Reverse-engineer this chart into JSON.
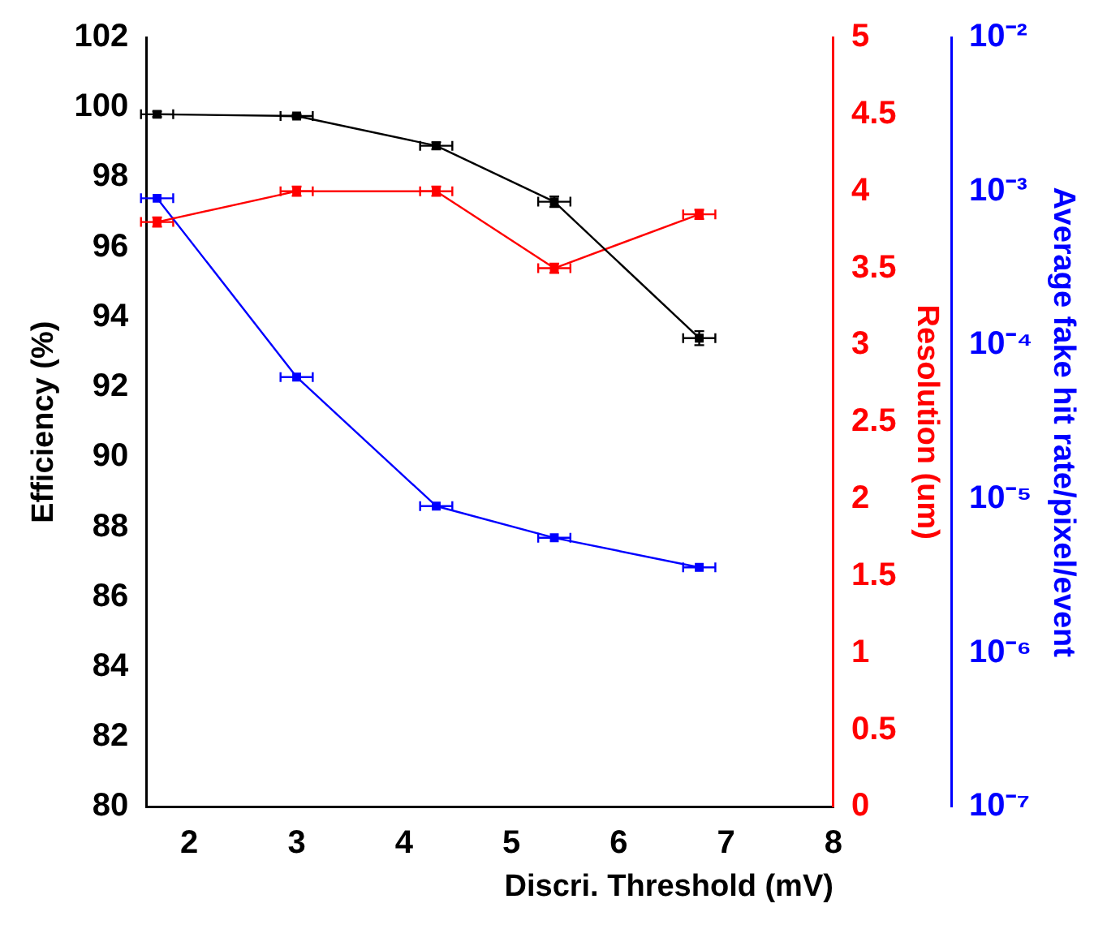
{
  "chart_data": {
    "type": "line",
    "xlabel": "Discri. Threshold (mV)",
    "ylabel": "Efficiency (%)",
    "y2label": "Resolution (um)",
    "y3label": "Average fake hit rate/pixel/event",
    "x": [
      1.7,
      3.0,
      4.3,
      5.4,
      6.75
    ],
    "series": [
      {
        "color": "#000000",
        "values": [
          99.8,
          99.75,
          98.9,
          97.3,
          93.4
        ],
        "errors": [
          0.08,
          0.05,
          0.1,
          0.15,
          0.2
        ],
        "xerrors": [
          0.15,
          0.15,
          0.15,
          0.15,
          0.15
        ]
      },
      {
        "color": "#ff0000",
        "values": [
          3.8,
          4.0,
          4.0,
          3.5,
          3.85
        ],
        "errors": [
          0.03,
          0.03,
          0.03,
          0.03,
          0.03
        ],
        "xerrors": [
          0.15,
          0.15,
          0.15,
          0.15,
          0.15
        ],
        "axis": "y2"
      },
      {
        "color": "#0000ff",
        "values": [
          0.0009,
          6.2e-05,
          9e-06,
          5.6e-06,
          3.6e-06
        ],
        "xerrors": [
          0.15,
          0.15,
          0.15,
          0.15,
          0.15
        ],
        "axis": "y3"
      }
    ],
    "xlim": [
      1.6,
      8
    ],
    "xticks": [
      2,
      3,
      4,
      5,
      6,
      7,
      8
    ],
    "ylim": [
      80,
      102
    ],
    "yticks": [
      80,
      82,
      84,
      86,
      88,
      90,
      92,
      94,
      96,
      98,
      100,
      102
    ],
    "y2lim": [
      0,
      5
    ],
    "y2ticks": [
      0,
      0.5,
      1,
      1.5,
      2,
      2.5,
      3,
      3.5,
      4,
      4.5,
      5
    ],
    "y3lim": [
      1e-07,
      0.01
    ],
    "y3ticks": [
      {
        "value": 1e-07,
        "label": "10⁻⁷"
      },
      {
        "value": 1e-06,
        "label": "10⁻⁶"
      },
      {
        "value": 1e-05,
        "label": "10⁻⁵"
      },
      {
        "value": 0.0001,
        "label": "10⁻⁴"
      },
      {
        "value": 0.001,
        "label": "10⁻³"
      },
      {
        "value": 0.01,
        "label": "10⁻²"
      }
    ],
    "log": "y3",
    "grid": false,
    "legend": false,
    "marker": "square"
  }
}
